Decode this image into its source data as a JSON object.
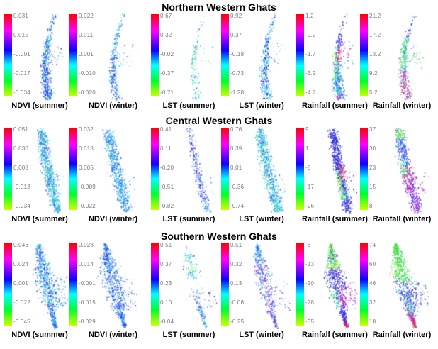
{
  "colorbar": {
    "gradient": [
      "#ff0000",
      "#ff00ff",
      "#0d00ff",
      "#00ffff",
      "#00ff2a",
      "#ccff00"
    ],
    "tick_label_color": "#7a7a7a"
  },
  "chart_data": {
    "type": "scatter",
    "figure_kind": "colorbar trend maps of Western Ghats regions",
    "rows": [
      {
        "title": "Northern Western Ghats",
        "panels": [
          {
            "caption": "NDVI (summer)",
            "ticks": [
              "0.031",
              "0.015",
              "-0.001",
              "-0.017",
              "-0.034"
            ],
            "map": {
              "density": 0.9,
              "wscale": 1,
              "base": [
                "#1f33e8",
                "#2e59f2",
                "#3f85f2",
                "#49c2ec",
                "#33d9d6"
              ],
              "zones": [
                [
                  0.55,
                  1,
                  "A",
                  0.3,
                  [
                    "#1a28d8",
                    "#2435ee"
                  ]
                ]
              ]
            }
          },
          {
            "caption": "NDVI (winter)",
            "ticks": [
              "0.022",
              "0.011",
              "0.001",
              "-0.010",
              "-0.020"
            ],
            "map": {
              "density": 0.55,
              "wscale": 0.75,
              "base": [
                "#49c2ec",
                "#33d9d6",
                "#2e59f2",
                "#3f85f2"
              ],
              "zones": [
                [
                  0.5,
                  1,
                  "A",
                  0.35,
                  [
                    "#2435ee",
                    "#2e59f2"
                  ]
                ]
              ]
            }
          },
          {
            "caption": "LST (summer)",
            "ticks": [
              "0.67",
              "0.32",
              "-0.02",
              "-0.37",
              "-0.71"
            ],
            "map": {
              "density": 0.33,
              "wscale": 0.8,
              "base": [
                "#49c2ec",
                "#33d9d6",
                "#35dfae",
                "#2e59f2"
              ],
              "thin": [
                [
                  0,
                  0.35,
                  0.35
                ],
                [
                  0.8,
                  1,
                  0.4
                ]
              ],
              "zones": [
                [
                  0.35,
                  0.7,
                  "A",
                  0.35,
                  [
                    "#35dfae",
                    "#3ee37a"
                  ]
                ]
              ]
            }
          },
          {
            "caption": "LST (winter)",
            "ticks": [
              "0.92",
              "0.37",
              "-0.18",
              "-0.73",
              "-1.28"
            ],
            "map": {
              "density": 0.6,
              "wscale": 0.85,
              "base": [
                "#2e59f2",
                "#49c2ec",
                "#33d9d6",
                "#1f33e8"
              ],
              "zones": []
            }
          },
          {
            "caption": "Rainfall (summer)",
            "ticks": [
              "1.2",
              "-0.2",
              "-1.7",
              "-3.2",
              "-4.7"
            ],
            "map": {
              "density": 1.0,
              "wscale": 1,
              "base": [
                "#2e59f2",
                "#33d9d6"
              ],
              "thin": [
                [
                  0,
                  0.22,
                  0.45
                ]
              ],
              "zones": [
                [
                  0,
                  0.38,
                  "A",
                  0.85,
                  [
                    "#5b2be4",
                    "#3c3cf0",
                    "#8331e0",
                    "#2e59f2"
                  ]
                ],
                [
                  0.33,
                  0.58,
                  "R",
                  0.75,
                  [
                    "#ea17a0",
                    "#f23055",
                    "#d92ad3",
                    "#e01750"
                  ]
                ],
                [
                  0.42,
                  0.78,
                  "L",
                  0.7,
                  [
                    "#3fe44e",
                    "#8fe92c",
                    "#bff317",
                    "#2ad879"
                  ]
                ],
                [
                  0.55,
                  0.92,
                  "A",
                  0.8,
                  [
                    "#28cfcf",
                    "#33aadd",
                    "#2e59f2"
                  ]
                ],
                [
                  0.9,
                  1,
                  "A",
                  0.5,
                  [
                    "#d92ad3",
                    "#ea17a0"
                  ]
                ]
              ]
            }
          },
          {
            "caption": "Rainfall (winter)",
            "ticks": [
              "21.2",
              "17.2",
              "13.2",
              "9.2",
              "5.2"
            ],
            "map": {
              "density": 0.75,
              "wscale": 0.85,
              "base": [
                "#2e59f2",
                "#49c2ec"
              ],
              "thin": [
                [
                  0,
                  0.2,
                  0.5
                ]
              ],
              "zones": [
                [
                  0,
                  0.28,
                  "A",
                  0.8,
                  [
                    "#3c3cf0",
                    "#6a2de0",
                    "#2e59f2"
                  ]
                ],
                [
                  0.28,
                  0.62,
                  "A",
                  0.8,
                  [
                    "#28cfcf",
                    "#3fe44e",
                    "#8fe92c",
                    "#49c2ec"
                  ]
                ],
                [
                  0.62,
                  1,
                  "A",
                  0.8,
                  [
                    "#ea17a0",
                    "#f23055",
                    "#d92ad3",
                    "#28cfcf"
                  ]
                ]
              ]
            }
          }
        ]
      },
      {
        "title": "Central Western Ghats",
        "panels": [
          {
            "caption": "NDVI (summer)",
            "ticks": [
              "0.051",
              "0.030",
              "0.008",
              "-0.013",
              "-0.034"
            ],
            "map": {
              "density": 1.1,
              "base": [
                "#33d9d6",
                "#49c2ec",
                "#2e59f2",
                "#35dfae",
                "#3f85f2"
              ],
              "zones": []
            }
          },
          {
            "caption": "NDVI (winter)",
            "ticks": [
              "0.032",
              "0.018",
              "0.005",
              "-0.009",
              "-0.022"
            ],
            "map": {
              "density": 1.0,
              "base": [
                "#49c2ec",
                "#33d9d6",
                "#3f85f2",
                "#2e59f2"
              ],
              "zones": []
            }
          },
          {
            "caption": "LST (summer)",
            "ticks": [
              "0.41",
              "0.11",
              "-0.20",
              "-0.51",
              "-0.82"
            ],
            "map": {
              "density": 0.45,
              "wscale": 0.65,
              "base": [
                "#2e59f2",
                "#1f33e8",
                "#49c2ec",
                "#6a2de0"
              ],
              "thin": [
                [
                  0,
                  0.3,
                  0.5
                ]
              ],
              "zones": []
            }
          },
          {
            "caption": "LST (winter)",
            "ticks": [
              "0.76",
              "0.39",
              "0.01",
              "-0.36",
              "-0.74"
            ],
            "map": {
              "density": 1.0,
              "base": [
                "#33d9d6",
                "#35dfae",
                "#49c2ec",
                "#2e59f2"
              ],
              "zones": []
            }
          },
          {
            "caption": "Rainfall (summer)",
            "ticks": [
              "9",
              "1",
              "-8",
              "-17",
              "-26"
            ],
            "map": {
              "density": 1.15,
              "base": [
                "#2233dd"
              ],
              "zones": [
                [
                  0,
                  0.45,
                  "A",
                  0.85,
                  [
                    "#1a22cc",
                    "#2e3ae8",
                    "#4a2ad8",
                    "#3c3cf0"
                  ]
                ],
                [
                  0.38,
                  0.62,
                  "R",
                  0.7,
                  [
                    "#f22040",
                    "#ea17a0",
                    "#e01750"
                  ]
                ],
                [
                  0.5,
                  0.85,
                  "L",
                  0.65,
                  [
                    "#3fe44e",
                    "#a5ec24",
                    "#2ad879"
                  ]
                ],
                [
                  0.62,
                  1,
                  "A",
                  0.7,
                  [
                    "#28cfcf",
                    "#3c3cf0",
                    "#6a2de0"
                  ]
                ]
              ]
            }
          },
          {
            "caption": "Rainfall (winter)",
            "ticks": [
              "37",
              "30",
              "23",
              "15",
              "8"
            ],
            "map": {
              "density": 1.0,
              "base": [
                "#2e59f2"
              ],
              "zones": [
                [
                  0,
                  0.12,
                  "A",
                  0.7,
                  [
                    "#3fe44e",
                    "#8fe92c"
                  ]
                ],
                [
                  0.1,
                  0.4,
                  "A",
                  0.8,
                  [
                    "#3c3cf0",
                    "#6a2de0",
                    "#2e59f2",
                    "#28cfcf"
                  ]
                ],
                [
                  0.35,
                  0.55,
                  "L",
                  0.7,
                  [
                    "#28cfcf",
                    "#2ad879",
                    "#3fe44e"
                  ]
                ],
                [
                  0.45,
                  0.62,
                  "A",
                  0.55,
                  [
                    "#f22040",
                    "#ea17a0"
                  ]
                ],
                [
                  0.6,
                  1,
                  "A",
                  0.85,
                  [
                    "#d92ad3",
                    "#6a2de0",
                    "#ea17a0",
                    "#3c3cf0"
                  ]
                ]
              ]
            }
          }
        ]
      },
      {
        "title": "Southern Western Ghats",
        "panels": [
          {
            "caption": "NDVI (summer)",
            "ticks": [
              "0.046",
              "0.024",
              "0.001",
              "-0.022",
              "-0.045"
            ],
            "map": {
              "density": 1.1,
              "base": [
                "#2e59f2",
                "#1f33e8",
                "#49c2ec",
                "#3f85f2",
                "#33d9d6"
              ],
              "zones": []
            }
          },
          {
            "caption": "NDVI (winter)",
            "ticks": [
              "0.028",
              "0.014",
              "-0.001",
              "-0.015",
              "-0.029"
            ],
            "map": {
              "density": 1.05,
              "base": [
                "#2e59f2",
                "#3f85f2",
                "#49c2ec",
                "#1f33e8"
              ],
              "zones": []
            }
          },
          {
            "caption": "LST (summer)",
            "ticks": [
              "0.51",
              "0.37",
              "0.23",
              "0.10",
              "-0.04"
            ],
            "map": {
              "density": 0.4,
              "wscale": 0.8,
              "base": [
                "#49c2ec",
                "#33d9d6",
                "#2e59f2"
              ],
              "thin": [
                [
                  0,
                  0.1,
                  0.3
                ],
                [
                  0.42,
                  0.55,
                  0.08
                ]
              ],
              "zones": [
                [
                  0.15,
                  0.35,
                  "A",
                  0.4,
                  [
                    "#2ad879",
                    "#3fe44e"
                  ]
                ],
                [
                  0.55,
                  0.95,
                  "A",
                  0.3,
                  [
                    "#d92ad3",
                    "#6a2de0"
                  ]
                ]
              ]
            }
          },
          {
            "caption": "LST (winter)",
            "ticks": [
              "0.51",
              "0.32",
              "0.13",
              "-0.06",
              "-0.25"
            ],
            "map": {
              "density": 0.7,
              "wscale": 0.8,
              "base": [
                "#2e59f2",
                "#49c2ec"
              ],
              "zones": [
                [
                  0.2,
                  1,
                  "A",
                  0.5,
                  [
                    "#6a2de0",
                    "#d92ad3",
                    "#8331e0"
                  ]
                ]
              ]
            }
          },
          {
            "caption": "Rainfall (summer)",
            "ticks": [
              "-6",
              "-13",
              "-20",
              "-28",
              "-35"
            ],
            "map": {
              "density": 1.25,
              "base": [
                "#2e3ae8"
              ],
              "zones": [
                [
                  0,
                  0.3,
                  "A",
                  0.85,
                  [
                    "#3fe44e",
                    "#8fe92c",
                    "#bff317",
                    "#28cfcf"
                  ]
                ],
                [
                  0.25,
                  0.55,
                  "A",
                  0.75,
                  [
                    "#2e3ae8",
                    "#1a22cc",
                    "#6a2de0"
                  ]
                ],
                [
                  0.45,
                  0.75,
                  "R",
                  0.7,
                  [
                    "#ea17a0",
                    "#d92ad3"
                  ]
                ],
                [
                  0.5,
                  0.8,
                  "L",
                  0.6,
                  [
                    "#2ad879",
                    "#28cfcf",
                    "#3fe44e"
                  ]
                ],
                [
                  0.75,
                  0.95,
                  "A",
                  0.6,
                  [
                    "#2e3ae8",
                    "#3c3cf0"
                  ]
                ],
                [
                  0.88,
                  1,
                  "A",
                  0.8,
                  [
                    "#f22040",
                    "#e01750",
                    "#ea17a0"
                  ]
                ]
              ]
            }
          },
          {
            "caption": "Rainfall (winter)",
            "ticks": [
              "74",
              "60",
              "46",
              "32",
              "18"
            ],
            "map": {
              "density": 1.25,
              "base": [
                "#2ad879"
              ],
              "zones": [
                [
                  0,
                  0.45,
                  "A",
                  0.9,
                  [
                    "#2ed052",
                    "#50e03a",
                    "#8fe92c",
                    "#2ad879"
                  ]
                ],
                [
                  0.4,
                  0.75,
                  "A",
                  0.75,
                  [
                    "#2e3ae8",
                    "#5b2be4",
                    "#3c3cf0"
                  ]
                ],
                [
                  0.5,
                  0.8,
                  "R",
                  0.5,
                  [
                    "#28cfcf",
                    "#49c2ec"
                  ]
                ],
                [
                  0.75,
                  0.92,
                  "A",
                  0.6,
                  [
                    "#6a2de0",
                    "#d92ad3"
                  ]
                ],
                [
                  0.88,
                  1,
                  "A",
                  0.8,
                  [
                    "#ea17a0",
                    "#f22040"
                  ]
                ]
              ]
            }
          }
        ]
      }
    ]
  }
}
